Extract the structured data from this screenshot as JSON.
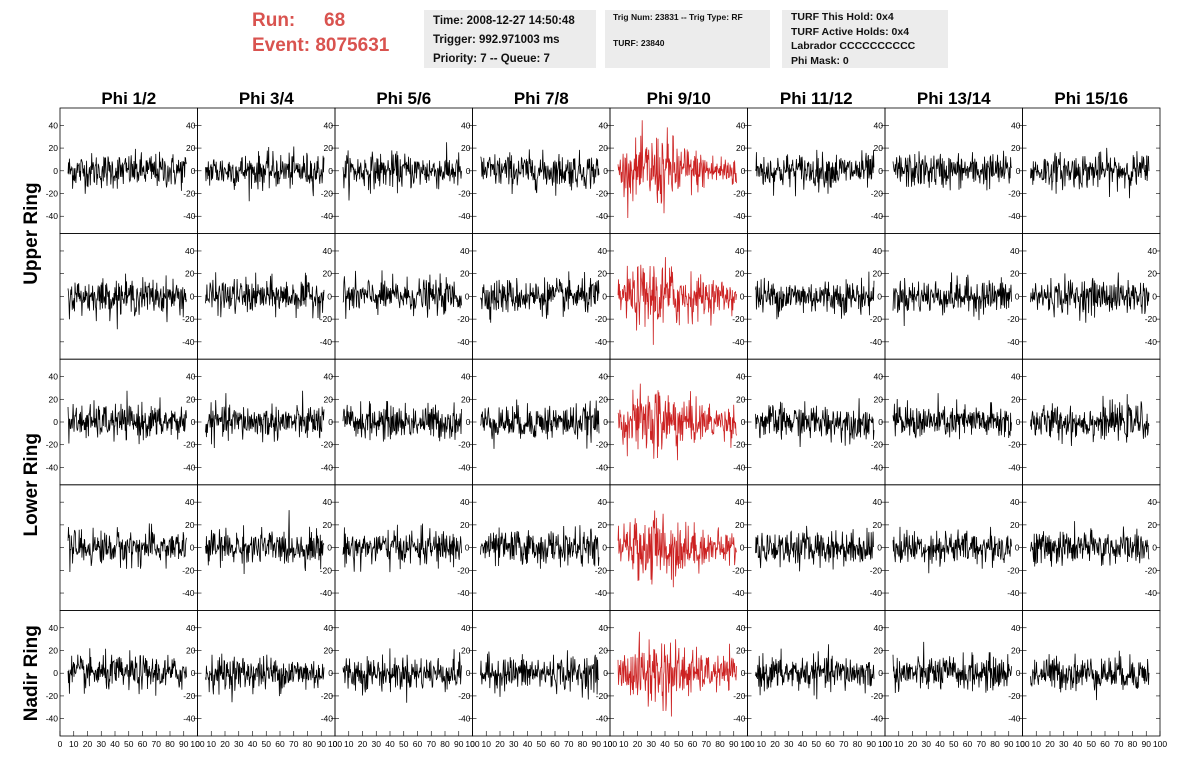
{
  "header": {
    "run_label": "Run:",
    "run_value": "68",
    "event_label": "Event:",
    "event_value": "8075631",
    "time_box": [
      "Time: 2008-12-27 14:50:48",
      "Trigger: 992.971003 ms",
      "Priority: 7 -- Queue: 7"
    ],
    "trig_box": {
      "line1": "Trig Num: 23831 -- Trig Type: RF",
      "line2": "TURF: 23840"
    },
    "turf_box": [
      "TURF This Hold: 0x4",
      "TURF Active Holds: 0x4",
      "Labrador CCCCCCCCCC",
      "Phi Mask: 0"
    ]
  },
  "colors": {
    "header_text": "#d9534f",
    "trace_default": "#000000",
    "trace_highlight": "#cc2222",
    "info_bg": "#ececec"
  },
  "chart_data": {
    "type": "line",
    "columns": [
      "Phi 1/2",
      "Phi 3/4",
      "Phi 5/6",
      "Phi 7/8",
      "Phi 9/10",
      "Phi 11/12",
      "Phi 13/14",
      "Phi 15/16"
    ],
    "ring_labels": [
      "Upper Ring",
      "Lower Ring",
      "Nadir Ring"
    ],
    "rows": 5,
    "highlighted_column": "Phi 9/10",
    "x_ticks": [
      "0",
      "10",
      "20",
      "30",
      "40",
      "50",
      "60",
      "70",
      "80",
      "90",
      "100"
    ],
    "y_ticks": [
      "-40",
      "-20",
      "0",
      "20",
      "40"
    ],
    "xlim": [
      0,
      100
    ],
    "ylim": [
      -50,
      50
    ],
    "samples_per_trace": 256,
    "amplitude": {
      "default": 14,
      "highlighted": 22,
      "peak_default": 45,
      "peak_highlighted": 48
    }
  }
}
